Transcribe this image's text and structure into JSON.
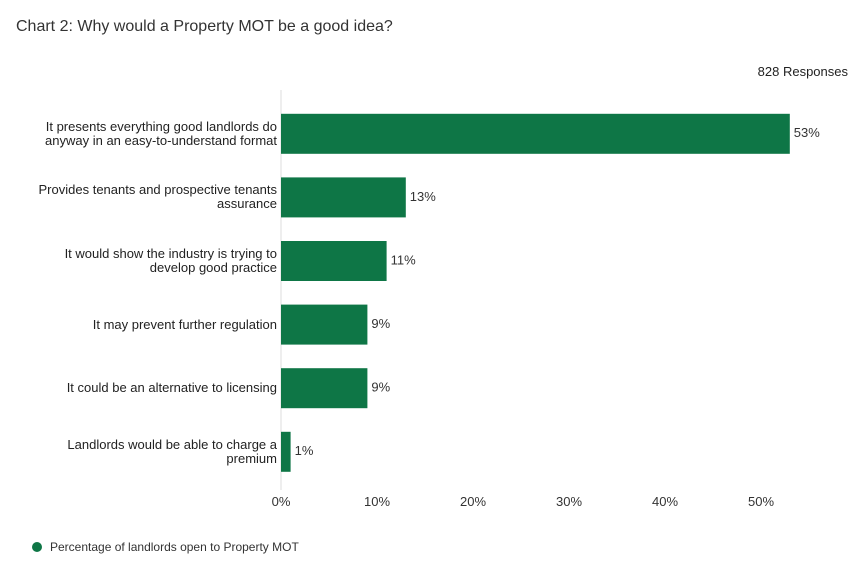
{
  "chart_data": {
    "type": "hbar",
    "title": "Chart 2: Why would a Property MOT be a good idea?",
    "subtitle": "828 Responses",
    "categories": [
      "It presents everything good landlords do anyway in an easy-to-understand format",
      "Provides tenants and prospective tenants assurance",
      "It would show the industry is trying to develop good practice",
      "It may prevent further regulation",
      "It could be an alternative to licensing",
      "Landlords would be able to charge a premium"
    ],
    "series": [
      {
        "name": "Percentage of landlords open to Property MOT",
        "color": "#0e7646",
        "values": [
          53,
          13,
          11,
          9,
          9,
          1
        ],
        "value_labels": [
          "53%",
          "13%",
          "11%",
          "9%",
          "9%",
          "1%"
        ]
      }
    ],
    "xlim": [
      0,
      57
    ],
    "xticks": [
      {
        "value": 0,
        "label": "0%"
      },
      {
        "value": 10,
        "label": "10%"
      },
      {
        "value": 20,
        "label": "20%"
      },
      {
        "value": 30,
        "label": "30%"
      },
      {
        "value": 40,
        "label": "40%"
      },
      {
        "value": 50,
        "label": "50%"
      }
    ],
    "grid": false,
    "legend": "bottom-left"
  }
}
